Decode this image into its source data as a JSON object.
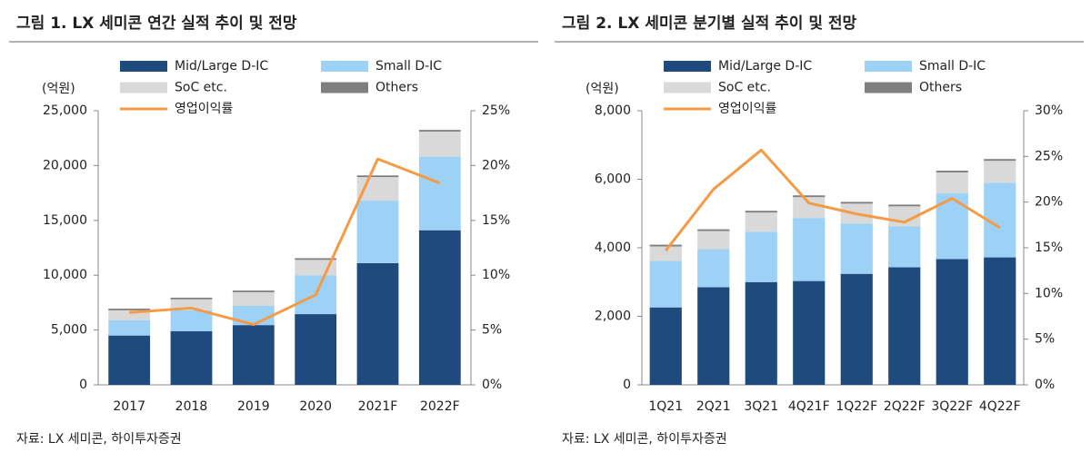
{
  "chart_data": [
    {
      "type": "bar",
      "title": "그림 1. LX 세미콘 연간 실적 추이 및 전망",
      "y_label": "(억원)",
      "source": "자료: LX 세미콘, 하이투자증권",
      "categories": [
        "2017",
        "2018",
        "2019",
        "2020",
        "2021F",
        "2022F"
      ],
      "ylim": [
        0,
        25000
      ],
      "yticks": [
        0,
        {
          "value": 5000,
          "label": "5,000"
        },
        {
          "value": 10000,
          "label": "10,000"
        },
        {
          "value": 15000,
          "label": "15,000"
        },
        {
          "value": 20000,
          "label": "20,000"
        },
        {
          "value": 25000,
          "label": "25,000"
        }
      ],
      "y2lim": [
        0,
        25
      ],
      "y2ticks": [
        {
          "value": 0,
          "label": "0%"
        },
        {
          "value": 5,
          "label": "5%"
        },
        {
          "value": 10,
          "label": "10%"
        },
        {
          "value": 15,
          "label": "15%"
        },
        {
          "value": 20,
          "label": "20%"
        },
        {
          "value": 25,
          "label": "25%"
        }
      ],
      "series": [
        {
          "name": "Mid/Large D-IC",
          "color": "#1f4a7e",
          "values": [
            4500,
            4900,
            5450,
            6450,
            11100,
            14100
          ]
        },
        {
          "name": "Small D-IC",
          "color": "#9dd1f6",
          "values": [
            1400,
            1900,
            1750,
            3550,
            5700,
            6700
          ]
        },
        {
          "name": "SoC etc.",
          "color": "#d9d9d9",
          "values": [
            900,
            1000,
            1250,
            1400,
            2150,
            2300
          ]
        },
        {
          "name": "Others",
          "color": "#7f7f7f",
          "values": [
            150,
            150,
            150,
            150,
            150,
            150
          ]
        },
        {
          "name": "영업이익률",
          "type": "line",
          "axis": "y2",
          "color": "#f59a45",
          "values": [
            6.6,
            7.0,
            5.5,
            8.2,
            20.6,
            18.4
          ]
        }
      ]
    },
    {
      "type": "bar",
      "title": "그림 2. LX 세미콘 분기별 실적 추이 및 전망",
      "y_label": "(억원)",
      "source": "자료: LX 세미콘, 하이투자증권",
      "categories": [
        "1Q21",
        "2Q21",
        "3Q21",
        "4Q21F",
        "1Q22F",
        "2Q22F",
        "3Q22F",
        "4Q22F"
      ],
      "ylim": [
        0,
        8000
      ],
      "yticks": [
        0,
        {
          "value": 2000,
          "label": "2,000"
        },
        {
          "value": 4000,
          "label": "4,000"
        },
        {
          "value": 6000,
          "label": "6,000"
        },
        {
          "value": 8000,
          "label": "8,000"
        }
      ],
      "y2lim": [
        0,
        30
      ],
      "y2ticks": [
        {
          "value": 0,
          "label": "0%"
        },
        {
          "value": 5,
          "label": "5%"
        },
        {
          "value": 10,
          "label": "10%"
        },
        {
          "value": 15,
          "label": "15%"
        },
        {
          "value": 20,
          "label": "20%"
        },
        {
          "value": 25,
          "label": "25%"
        },
        {
          "value": 30,
          "label": "30%"
        }
      ],
      "series": [
        {
          "name": "Mid/Large D-IC",
          "color": "#1f4a7e",
          "values": [
            2260,
            2850,
            3000,
            3030,
            3240,
            3430,
            3670,
            3720
          ]
        },
        {
          "name": "Small D-IC",
          "color": "#9dd1f6",
          "values": [
            1360,
            1110,
            1470,
            1840,
            1470,
            1200,
            1920,
            2180
          ]
        },
        {
          "name": "SoC etc.",
          "color": "#d9d9d9",
          "values": [
            420,
            530,
            560,
            610,
            580,
            580,
            610,
            640
          ]
        },
        {
          "name": "Others",
          "color": "#7f7f7f",
          "values": [
            50,
            50,
            50,
            50,
            50,
            50,
            50,
            50
          ]
        },
        {
          "name": "영업이익률",
          "type": "line",
          "axis": "y2",
          "color": "#f59a45",
          "values": [
            14.7,
            21.4,
            25.7,
            19.9,
            18.7,
            17.8,
            20.4,
            17.2
          ]
        }
      ]
    }
  ]
}
